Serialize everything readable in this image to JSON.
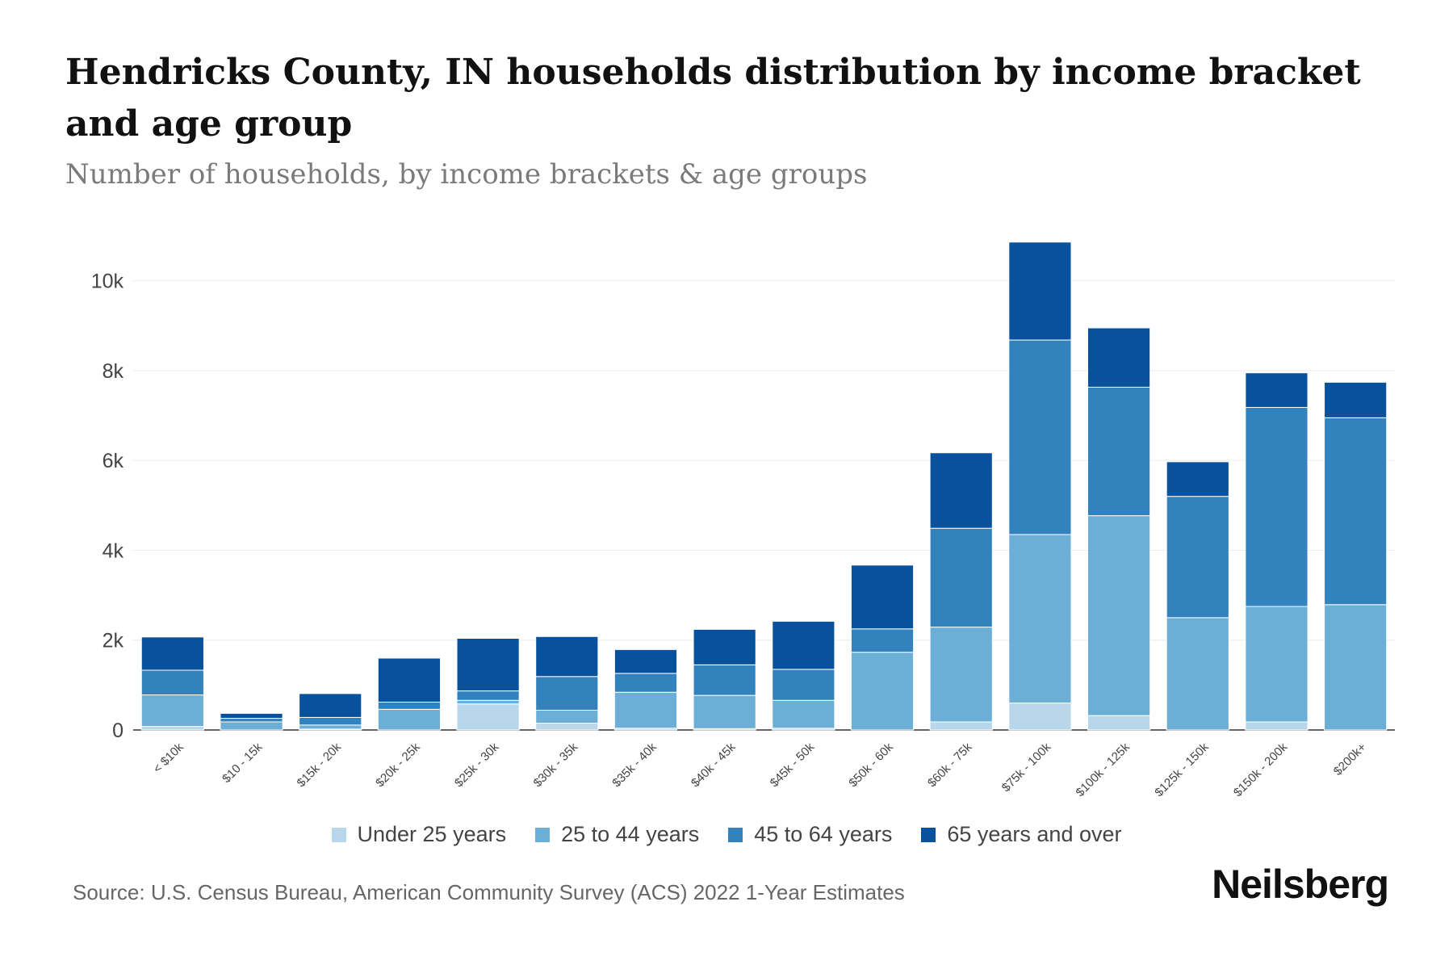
{
  "title": "Hendricks County, IN households distribution by income bracket and age group",
  "subtitle": "Number of households, by income brackets & age groups",
  "source": "Source: U.S. Census Bureau, American Community Survey (ACS) 2022 1-Year Estimates",
  "brand": "Neilsberg",
  "chart_data": {
    "type": "bar",
    "stacked": true,
    "categories": [
      "< $10k",
      "$10 - 15k",
      "$15k - 20k",
      "$20k - 25k",
      "$25k - 30k",
      "$30k - 35k",
      "$35k - 40k",
      "$40k - 45k",
      "$45k - 50k",
      "$50k - 60k",
      "$60k - 75k",
      "$75k - 100k",
      "$100k - 125k",
      "$125k - 150k",
      "$150k - 200k",
      "$200k+"
    ],
    "series": [
      {
        "name": "Under 25 years",
        "color": "#b9d7ea",
        "values": [
          80,
          0,
          20,
          0,
          580,
          150,
          40,
          30,
          40,
          0,
          180,
          600,
          320,
          0,
          180,
          0
        ]
      },
      {
        "name": "25 to 44 years",
        "color": "#6baed6",
        "values": [
          700,
          180,
          90,
          460,
          80,
          290,
          800,
          740,
          620,
          1730,
          2110,
          3750,
          4450,
          2500,
          2570,
          2790
        ]
      },
      {
        "name": "45 to 64 years",
        "color": "#3182bd",
        "values": [
          550,
          80,
          170,
          160,
          210,
          750,
          420,
          680,
          690,
          520,
          2200,
          4330,
          2860,
          2700,
          4430,
          4160
        ]
      },
      {
        "name": "65 years and over",
        "color": "#08519c",
        "values": [
          740,
          110,
          530,
          980,
          1170,
          890,
          530,
          790,
          1070,
          1420,
          1680,
          2180,
          1320,
          770,
          770,
          790
        ]
      }
    ],
    "yticks": [
      0,
      2000,
      4000,
      6000,
      8000,
      10000
    ],
    "ytick_labels": [
      "0",
      "2k",
      "4k",
      "6k",
      "8k",
      "10k"
    ],
    "ylim": [
      0,
      11000
    ],
    "grid": true,
    "legend_position": "bottom"
  }
}
